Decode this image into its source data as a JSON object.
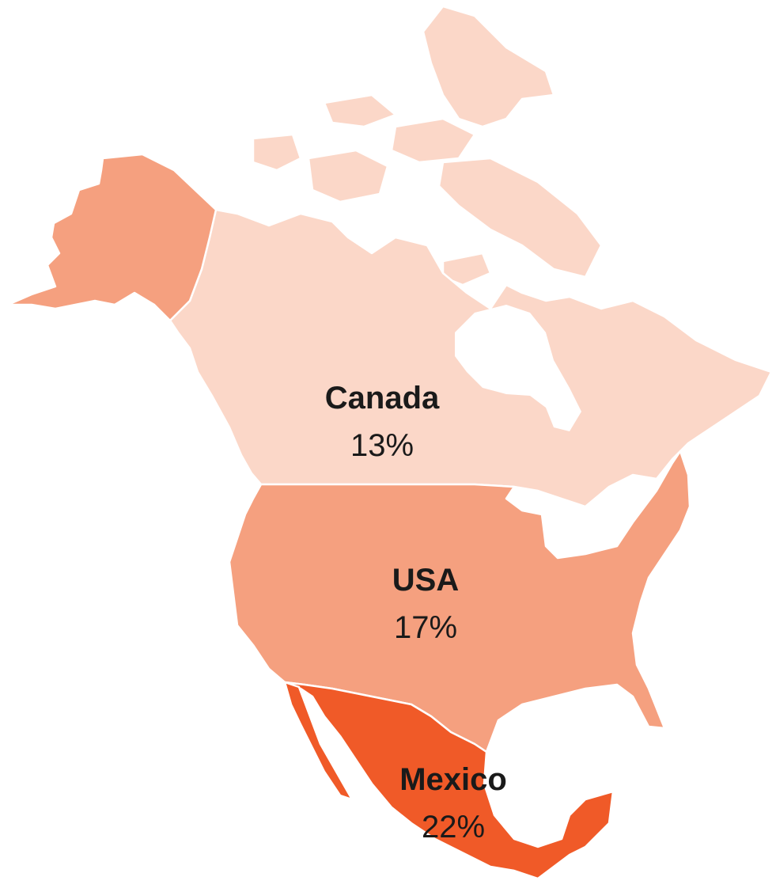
{
  "map": {
    "regions": [
      {
        "id": "canada",
        "name": "Canada",
        "value": "13%",
        "color": "#fbd7c8"
      },
      {
        "id": "usa",
        "name": "USA",
        "value": "17%",
        "color": "#f5a07f"
      },
      {
        "id": "alaska",
        "name": "",
        "value": "",
        "color": "#f5a07f"
      },
      {
        "id": "mexico",
        "name": "Mexico",
        "value": "22%",
        "color": "#f05a28"
      }
    ]
  }
}
